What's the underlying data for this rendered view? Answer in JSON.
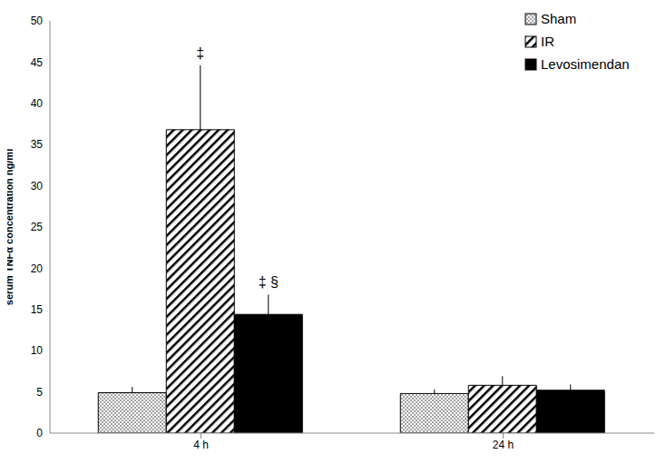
{
  "chart_data": {
    "type": "bar",
    "y_label": "serum TNFα concentration ng/ml",
    "categories": [
      "4 h",
      "24 h"
    ],
    "series": [
      {
        "name": "Sham",
        "color": "#000000",
        "values": [
          4.9,
          4.8
        ],
        "errors": [
          0.7,
          0.5
        ],
        "annotations": [
          null,
          null
        ]
      },
      {
        "name": "IR",
        "color": "#000000",
        "values": [
          36.8,
          5.8
        ],
        "errors": [
          7.8,
          1.1
        ],
        "annotations": [
          "‡",
          null
        ]
      },
      {
        "name": "Levosimendan",
        "color": "#000000",
        "values": [
          14.4,
          5.2
        ],
        "errors": [
          2.4,
          0.7
        ],
        "annotations": [
          "‡ §",
          null
        ]
      }
    ],
    "ylim": [
      0,
      50
    ],
    "yticks": [
      0,
      5,
      10,
      15,
      20,
      25,
      30,
      35,
      40,
      45,
      50
    ],
    "grid": false,
    "legend": "upper right"
  }
}
